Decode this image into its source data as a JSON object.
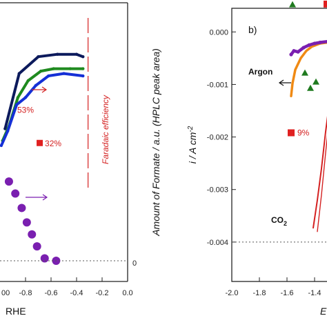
{
  "colors": {
    "navy": "#0c1a5c",
    "green": "#1f8a1f",
    "blue": "#1530d6",
    "purple": "#7a1fb0",
    "orange": "#f08a14",
    "red": "#d42020",
    "marker_red": "#e02020",
    "marker_green": "#1f7a1f",
    "dotted": "#555555"
  },
  "chart_data": [
    {
      "type": "line+scatter",
      "panel": "left",
      "x_ticks": [
        "-0.8",
        "-0.6",
        "-0.4",
        "-0.2",
        "0.0"
      ],
      "x_tick_values": [
        -0.8,
        -0.6,
        -0.4,
        -0.2,
        0.0
      ],
      "x_tick_partial": "00",
      "xlabel_fragment": "RHE",
      "xlim": [
        -1.0,
        0.0
      ],
      "right_axis_label": "Faradaic efficiency",
      "right_axis_tick": "0",
      "annotations": [
        {
          "text": "53%",
          "x": -0.8,
          "y_frac": 0.47
        },
        {
          "text": "32%",
          "x": -0.67,
          "y_frac": 0.62
        }
      ],
      "series": [
        {
          "color": "navy",
          "points": [
            [
              -0.96,
              0.45
            ],
            [
              -0.85,
              0.22
            ],
            [
              -0.7,
              0.15
            ],
            [
              -0.55,
              0.14
            ],
            [
              -0.4,
              0.14
            ],
            [
              -0.35,
              0.15
            ]
          ]
        },
        {
          "color": "green",
          "points": [
            [
              -0.98,
              0.5
            ],
            [
              -0.93,
              0.44
            ],
            [
              -0.86,
              0.32
            ],
            [
              -0.78,
              0.25
            ],
            [
              -0.68,
              0.21
            ],
            [
              -0.58,
              0.2
            ],
            [
              -0.45,
              0.2
            ],
            [
              -0.35,
              0.2
            ]
          ]
        },
        {
          "color": "blue",
          "points": [
            [
              -0.99,
              0.52
            ],
            [
              -0.94,
              0.46
            ],
            [
              -0.87,
              0.35
            ],
            [
              -0.8,
              0.32
            ],
            [
              -0.72,
              0.27
            ],
            [
              -0.62,
              0.23
            ],
            [
              -0.5,
              0.22
            ],
            [
              -0.35,
              0.23
            ]
          ]
        }
      ],
      "formate_points": [
        {
          "x": -0.93,
          "y_frac": 0.67
        },
        {
          "x": -0.88,
          "y_frac": 0.72
        },
        {
          "x": -0.83,
          "y_frac": 0.78
        },
        {
          "x": -0.79,
          "y_frac": 0.84
        },
        {
          "x": -0.75,
          "y_frac": 0.89
        },
        {
          "x": -0.71,
          "y_frac": 0.94
        },
        {
          "x": -0.65,
          "y_frac": 0.99
        },
        {
          "x": -0.56,
          "y_frac": 1.0
        }
      ],
      "formate_zero_frac": 1.0,
      "faradaic_x": -0.31
    },
    {
      "type": "line+scatter",
      "panel": "right",
      "panel_label": "b)",
      "ylabel": "i / A cm",
      "ylabel_sup": "-2",
      "y_ticks": [
        "0.000",
        "-0.001",
        "-0.002",
        "-0.003",
        "-0.004"
      ],
      "y_tick_values": [
        0.0,
        -0.001,
        -0.002,
        -0.003,
        -0.004
      ],
      "ylim": [
        -0.00475,
        0.00045
      ],
      "x_ticks": [
        "-2.0",
        "-1.8",
        "-1.6",
        "-1.4"
      ],
      "x_tick_values": [
        -2.0,
        -1.8,
        -1.6,
        -1.4
      ],
      "xlim": [
        -2.0,
        -1.3
      ],
      "xlabel_fragment": "E",
      "labels": {
        "argon": "Argon",
        "co2": "CO",
        "co2_sub": "2",
        "pct9": "9%"
      },
      "dotted_y": -0.004,
      "argon_curve": [
        [
          -1.57,
          -0.00043
        ],
        [
          -1.55,
          -0.00036
        ],
        [
          -1.52,
          -0.00038
        ],
        [
          -1.48,
          -0.0003
        ],
        [
          -1.44,
          -0.00025
        ],
        [
          -1.4,
          -0.00022
        ],
        [
          -1.36,
          -0.0002
        ],
        [
          -1.3,
          -0.00018
        ]
      ],
      "orange_curve": [
        [
          -1.57,
          -0.00122
        ],
        [
          -1.56,
          -0.00098
        ],
        [
          -1.54,
          -0.00072
        ],
        [
          -1.5,
          -0.0005
        ],
        [
          -1.46,
          -0.00036
        ],
        [
          -1.42,
          -0.00028
        ],
        [
          -1.36,
          -0.00022
        ],
        [
          -1.3,
          -0.0002
        ]
      ],
      "co2_curve": [
        [
          -1.41,
          -0.00373
        ],
        [
          -1.38,
          -0.0032
        ],
        [
          -1.35,
          -0.0026
        ],
        [
          -1.32,
          -0.0019
        ],
        [
          -1.3,
          -0.0015
        ]
      ],
      "co2_curve2": [
        [
          -1.38,
          -0.0038
        ],
        [
          -1.35,
          -0.0031
        ],
        [
          -1.32,
          -0.0023
        ],
        [
          -1.3,
          -0.0018
        ]
      ],
      "green_triangles": [
        [
          -1.56,
          0.00052
        ],
        [
          -1.47,
          -0.00078
        ],
        [
          -1.43,
          -0.00107
        ],
        [
          -1.39,
          -0.00095
        ]
      ],
      "red_squares": [
        [
          -1.31,
          0.00053
        ],
        [
          -1.57,
          -0.00192
        ]
      ]
    }
  ]
}
